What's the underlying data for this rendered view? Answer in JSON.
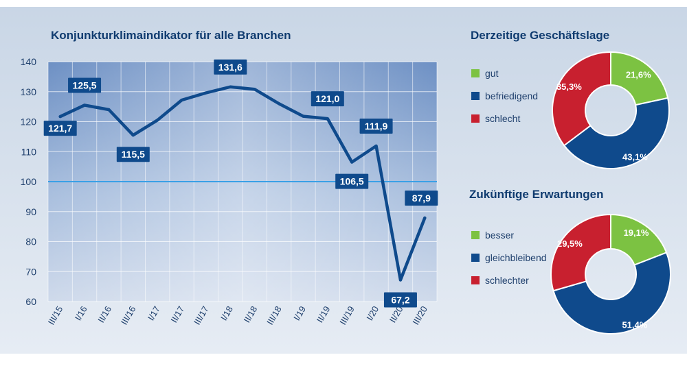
{
  "colors": {
    "line": "#0f4a8c",
    "label_bg": "#0f4a8c",
    "reference_line": "#3aa0e6",
    "green": "#7cc242",
    "blue": "#0f4a8c",
    "red": "#c8202f",
    "title": "#0f3b6f"
  },
  "chart_data": [
    {
      "type": "line",
      "title": "Konjunkturklimaindikator für alle Branchen",
      "categories": [
        "III/15",
        "I/16",
        "II/16",
        "III/16",
        "I/17",
        "II/17",
        "III/17",
        "I/18",
        "II/18",
        "III/18",
        "I/19",
        "II/19",
        "III/19",
        "I/20",
        "II/20",
        "III/20"
      ],
      "values": [
        121.7,
        125.5,
        124.0,
        115.5,
        120.5,
        127.2,
        129.6,
        131.6,
        130.8,
        126.0,
        121.8,
        121.0,
        106.5,
        111.9,
        67.2,
        87.9
      ],
      "data_labels": [
        {
          "index": 0,
          "text": "121,7"
        },
        {
          "index": 1,
          "text": "125,5"
        },
        {
          "index": 3,
          "text": "115,5"
        },
        {
          "index": 7,
          "text": "131,6"
        },
        {
          "index": 11,
          "text": "121,0"
        },
        {
          "index": 12,
          "text": "106,5"
        },
        {
          "index": 13,
          "text": "111,9"
        },
        {
          "index": 14,
          "text": "67,2"
        },
        {
          "index": 15,
          "text": "87,9"
        }
      ],
      "ylim": [
        60,
        140
      ],
      "yticks": [
        60,
        70,
        80,
        90,
        100,
        110,
        120,
        130,
        140
      ],
      "reference_line": 100,
      "grid": true
    },
    {
      "type": "pie",
      "title": "Derzeitige Geschäftslage",
      "slices": [
        {
          "label": "gut",
          "value": 21.6,
          "text": "21,6%",
          "color": "#7cc242"
        },
        {
          "label": "befriedigend",
          "value": 43.1,
          "text": "43,1%",
          "color": "#0f4a8c"
        },
        {
          "label": "schlecht",
          "value": 35.3,
          "text": "35,3%",
          "color": "#c8202f"
        }
      ]
    },
    {
      "type": "pie",
      "title": "Zukünftige Erwartungen",
      "slices": [
        {
          "label": "besser",
          "value": 19.1,
          "text": "19,1%",
          "color": "#7cc242"
        },
        {
          "label": "gleichbleibend",
          "value": 51.4,
          "text": "51,4%",
          "color": "#0f4a8c"
        },
        {
          "label": "schlechter",
          "value": 29.5,
          "text": "29,5%",
          "color": "#c8202f"
        }
      ]
    }
  ]
}
